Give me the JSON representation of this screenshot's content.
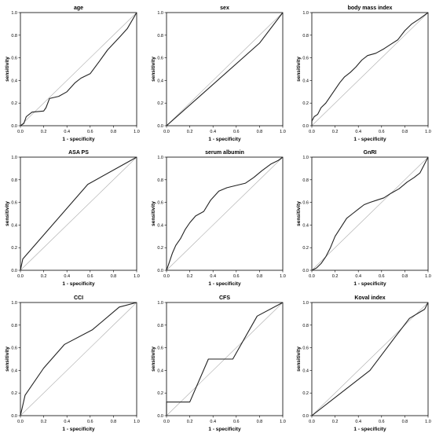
{
  "chart_data": [
    {
      "type": "line",
      "title": "age",
      "xlabel": "1 - specificity",
      "ylabel": "sensitivity",
      "xlim": [
        0,
        1
      ],
      "ylim": [
        0,
        1
      ],
      "x_ticks": [
        "0.0",
        "0.2",
        "0.4",
        "0.6",
        "0.8",
        "1.0"
      ],
      "y_ticks": [
        "0.0",
        "0.2",
        "0.4",
        "0.6",
        "0.8",
        "1.0"
      ],
      "series": [
        {
          "values_xy": [
            [
              0,
              0
            ],
            [
              0.03,
              0.02
            ],
            [
              0.05,
              0.08
            ],
            [
              0.1,
              0.12
            ],
            [
              0.2,
              0.13
            ],
            [
              0.22,
              0.16
            ],
            [
              0.25,
              0.24
            ],
            [
              0.33,
              0.26
            ],
            [
              0.4,
              0.3
            ],
            [
              0.47,
              0.38
            ],
            [
              0.52,
              0.42
            ],
            [
              0.6,
              0.46
            ],
            [
              0.68,
              0.57
            ],
            [
              0.75,
              0.67
            ],
            [
              0.85,
              0.78
            ],
            [
              0.92,
              0.86
            ],
            [
              1,
              1
            ]
          ]
        }
      ]
    },
    {
      "type": "line",
      "title": "sex",
      "xlabel": "1 - specificity",
      "ylabel": "sensitivity",
      "xlim": [
        0,
        1
      ],
      "ylim": [
        0,
        1
      ],
      "x_ticks": [
        "0.0",
        "0.2",
        "0.4",
        "0.6",
        "0.8",
        "1.0"
      ],
      "y_ticks": [
        "0.0",
        "0.2",
        "0.4",
        "0.6",
        "0.8",
        "1.0"
      ],
      "series": [
        {
          "values_xy": [
            [
              0,
              0
            ],
            [
              0.8,
              0.73
            ],
            [
              1,
              1
            ]
          ]
        }
      ]
    },
    {
      "type": "line",
      "title": "body mass index",
      "xlabel": "1 - specificity",
      "ylabel": "sensitivity",
      "xlim": [
        0,
        1
      ],
      "ylim": [
        0,
        1
      ],
      "x_ticks": [
        "0.0",
        "0.2",
        "0.4",
        "0.6",
        "0.8",
        "1.0"
      ],
      "y_ticks": [
        "0.0",
        "0.2",
        "0.4",
        "0.6",
        "0.8",
        "1.0"
      ],
      "series": [
        {
          "values_xy": [
            [
              0,
              0
            ],
            [
              0,
              0.04
            ],
            [
              0.02,
              0.08
            ],
            [
              0.05,
              0.1
            ],
            [
              0.08,
              0.16
            ],
            [
              0.12,
              0.2
            ],
            [
              0.16,
              0.26
            ],
            [
              0.2,
              0.32
            ],
            [
              0.24,
              0.38
            ],
            [
              0.28,
              0.43
            ],
            [
              0.33,
              0.47
            ],
            [
              0.38,
              0.52
            ],
            [
              0.43,
              0.58
            ],
            [
              0.48,
              0.62
            ],
            [
              0.55,
              0.64
            ],
            [
              0.62,
              0.68
            ],
            [
              0.68,
              0.72
            ],
            [
              0.74,
              0.76
            ],
            [
              0.8,
              0.84
            ],
            [
              0.86,
              0.9
            ],
            [
              0.92,
              0.94
            ],
            [
              0.96,
              0.97
            ],
            [
              1,
              1
            ]
          ]
        }
      ]
    },
    {
      "type": "line",
      "title": "ASA PS",
      "xlabel": "1 - specificity",
      "ylabel": "sensitivity",
      "xlim": [
        0,
        1
      ],
      "ylim": [
        0,
        1
      ],
      "x_ticks": [
        "0.0",
        "0.2",
        "0.4",
        "0.6",
        "0.8",
        "1.0"
      ],
      "y_ticks": [
        "0.0",
        "0.2",
        "0.4",
        "0.6",
        "0.8",
        "1.0"
      ],
      "series": [
        {
          "values_xy": [
            [
              0,
              0
            ],
            [
              0.02,
              0.1
            ],
            [
              0.58,
              0.76
            ],
            [
              1,
              1
            ]
          ]
        }
      ]
    },
    {
      "type": "line",
      "title": "serum albumin",
      "xlabel": "1 - specificity",
      "ylabel": "sensitivity",
      "xlim": [
        0,
        1
      ],
      "ylim": [
        0,
        1
      ],
      "x_ticks": [
        "0.0",
        "0.2",
        "0.4",
        "0.6",
        "0.8",
        "1.0"
      ],
      "y_ticks": [
        "0.0",
        "0.2",
        "0.4",
        "0.6",
        "0.8",
        "1.0"
      ],
      "series": [
        {
          "values_xy": [
            [
              0,
              0
            ],
            [
              0.02,
              0.06
            ],
            [
              0.05,
              0.15
            ],
            [
              0.08,
              0.22
            ],
            [
              0.12,
              0.28
            ],
            [
              0.16,
              0.36
            ],
            [
              0.2,
              0.42
            ],
            [
              0.25,
              0.48
            ],
            [
              0.32,
              0.52
            ],
            [
              0.38,
              0.62
            ],
            [
              0.45,
              0.7
            ],
            [
              0.52,
              0.73
            ],
            [
              0.6,
              0.75
            ],
            [
              0.68,
              0.77
            ],
            [
              0.75,
              0.82
            ],
            [
              0.82,
              0.88
            ],
            [
              0.9,
              0.94
            ],
            [
              0.96,
              0.97
            ],
            [
              1,
              1
            ]
          ]
        }
      ]
    },
    {
      "type": "line",
      "title": "GnRI",
      "xlabel": "1 - specificity",
      "ylabel": "sensitivity",
      "xlim": [
        0,
        1
      ],
      "ylim": [
        0,
        1
      ],
      "x_ticks": [
        "0.0",
        "0.2",
        "0.4",
        "0.6",
        "0.8",
        "1.0"
      ],
      "y_ticks": [
        "0.0",
        "0.2",
        "0.4",
        "0.6",
        "0.8",
        "1.0"
      ],
      "series": [
        {
          "values_xy": [
            [
              0,
              0
            ],
            [
              0.04,
              0.02
            ],
            [
              0.08,
              0.06
            ],
            [
              0.12,
              0.12
            ],
            [
              0.16,
              0.2
            ],
            [
              0.2,
              0.3
            ],
            [
              0.25,
              0.38
            ],
            [
              0.3,
              0.46
            ],
            [
              0.35,
              0.5
            ],
            [
              0.4,
              0.54
            ],
            [
              0.45,
              0.58
            ],
            [
              0.5,
              0.6
            ],
            [
              0.56,
              0.62
            ],
            [
              0.62,
              0.64
            ],
            [
              0.68,
              0.68
            ],
            [
              0.75,
              0.72
            ],
            [
              0.82,
              0.78
            ],
            [
              0.88,
              0.82
            ],
            [
              0.93,
              0.86
            ],
            [
              0.96,
              0.92
            ],
            [
              0.99,
              0.98
            ],
            [
              1,
              1
            ]
          ]
        }
      ]
    },
    {
      "type": "line",
      "title": "CCI",
      "xlabel": "1 - specificity",
      "ylabel": "sensitivity",
      "xlim": [
        0,
        1
      ],
      "ylim": [
        0,
        1
      ],
      "x_ticks": [
        "0.0",
        "0.2",
        "0.4",
        "0.6",
        "0.8",
        "1.0"
      ],
      "y_ticks": [
        "0.0",
        "0.2",
        "0.4",
        "0.6",
        "0.8",
        "1.0"
      ],
      "series": [
        {
          "values_xy": [
            [
              0,
              0
            ],
            [
              0.04,
              0.18
            ],
            [
              0.2,
              0.42
            ],
            [
              0.38,
              0.63
            ],
            [
              0.62,
              0.76
            ],
            [
              0.85,
              0.96
            ],
            [
              1,
              1
            ]
          ]
        }
      ]
    },
    {
      "type": "line",
      "title": "CFS",
      "xlabel": "1 - specificity",
      "ylabel": "sensitivity",
      "xlim": [
        0,
        1
      ],
      "ylim": [
        0,
        1
      ],
      "x_ticks": [
        "0.0",
        "0.2",
        "0.4",
        "0.6",
        "0.8",
        "1.0"
      ],
      "y_ticks": [
        "0.0",
        "0.2",
        "0.4",
        "0.6",
        "0.8",
        "1.0"
      ],
      "series": [
        {
          "values_xy": [
            [
              0,
              0
            ],
            [
              0,
              0.12
            ],
            [
              0.2,
              0.12
            ],
            [
              0.36,
              0.5
            ],
            [
              0.57,
              0.5
            ],
            [
              0.78,
              0.88
            ],
            [
              1,
              1
            ]
          ]
        }
      ]
    },
    {
      "type": "line",
      "title": "Koval index",
      "xlabel": "1 - specificity",
      "ylabel": "sensitivity",
      "xlim": [
        0,
        1
      ],
      "ylim": [
        0,
        1
      ],
      "x_ticks": [
        "0.0",
        "0.2",
        "0.4",
        "0.6",
        "0.8",
        "1.0"
      ],
      "y_ticks": [
        "0.0",
        "0.2",
        "0.4",
        "0.6",
        "0.8",
        "1.0"
      ],
      "series": [
        {
          "values_xy": [
            [
              0,
              0
            ],
            [
              0.5,
              0.4
            ],
            [
              0.72,
              0.7
            ],
            [
              0.84,
              0.86
            ],
            [
              0.97,
              0.94
            ],
            [
              1,
              1
            ]
          ]
        }
      ]
    }
  ]
}
